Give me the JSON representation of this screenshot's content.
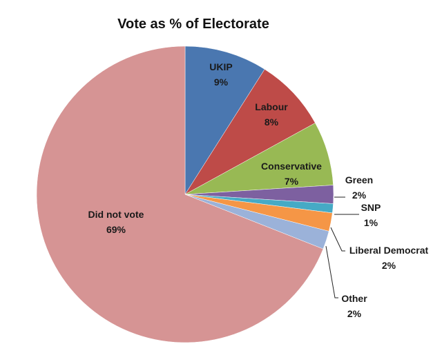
{
  "chart_data": {
    "type": "pie",
    "title": "Vote as % of Electorate",
    "categories": [
      "UKIP",
      "Labour",
      "Conservative",
      "Green",
      "SNP",
      "Liberal Democrat",
      "Other",
      "Did not vote"
    ],
    "values": [
      9,
      8,
      7,
      2,
      1,
      2,
      2,
      69
    ],
    "labels": [
      "9%",
      "8%",
      "7%",
      "2%",
      "1%",
      "2%",
      "2%",
      "69%"
    ],
    "colors": [
      "#4a77b0",
      "#be4b48",
      "#98b954",
      "#7d60a0",
      "#46aac5",
      "#f59646",
      "#9bb2d9",
      "#d69494"
    ],
    "start_angle_deg": 0,
    "direction": "clockwise",
    "legend": "none (data labels with leader lines)"
  }
}
